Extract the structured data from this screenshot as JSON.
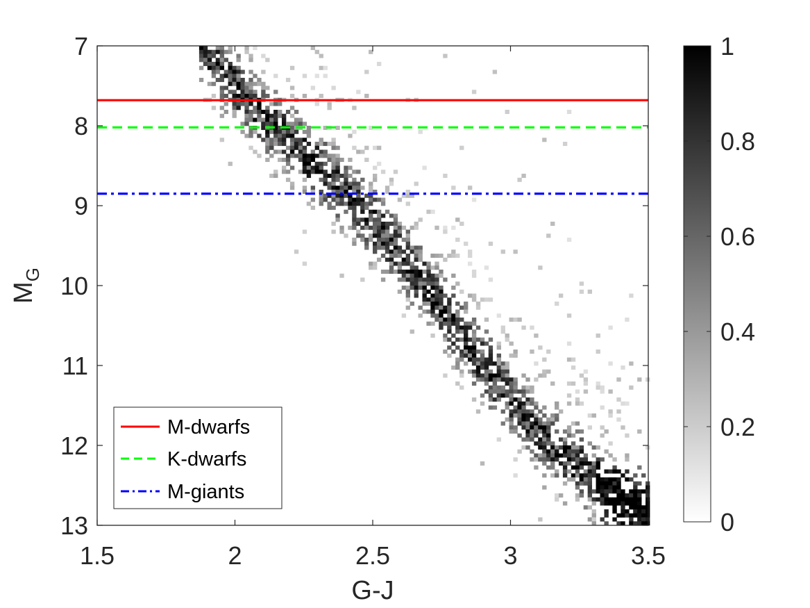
{
  "chart_data": {
    "type": "heatmap",
    "title": "",
    "xlabel": "G-J",
    "ylabel": "M",
    "ylabel_subscript": "G",
    "xlim": [
      1.5,
      3.5
    ],
    "ylim": [
      7,
      13
    ],
    "y_reversed": true,
    "grid": false,
    "x_ticks": [
      "1.5",
      "2",
      "2.5",
      "3",
      "3.5"
    ],
    "x_tick_values": [
      1.5,
      2,
      2.5,
      3,
      3.5
    ],
    "y_ticks": [
      "7",
      "8",
      "9",
      "10",
      "11",
      "12",
      "13"
    ],
    "y_tick_values": [
      7,
      8,
      9,
      10,
      11,
      12,
      13
    ],
    "colorbar": {
      "range": [
        0,
        1
      ],
      "ticks": [
        "0",
        "0.2",
        "0.4",
        "0.6",
        "0.8",
        "1"
      ],
      "tick_values": [
        0,
        0.2,
        0.4,
        0.6,
        0.8,
        1
      ],
      "colormap": "gray-reversed"
    },
    "density_ridge": {
      "description_units": "G-J vs M_G",
      "points": [
        [
          1.95,
          7.3
        ],
        [
          2.1,
          7.9
        ],
        [
          2.3,
          8.5
        ],
        [
          2.5,
          9.2
        ],
        [
          2.65,
          9.8
        ],
        [
          2.8,
          10.5
        ],
        [
          2.95,
          11.2
        ],
        [
          3.15,
          12.0
        ],
        [
          3.45,
          12.8
        ]
      ]
    },
    "series": [
      {
        "name": "M-dwarfs",
        "y": 7.68,
        "color": "#ff0000",
        "style": "solid"
      },
      {
        "name": "K-dwarfs",
        "y": 8.02,
        "color": "#00ff00",
        "style": "dashed"
      },
      {
        "name": "M-giants",
        "y": 8.85,
        "color": "#0000ff",
        "style": "dashdot"
      }
    ],
    "legend_position": "bottom-left"
  }
}
